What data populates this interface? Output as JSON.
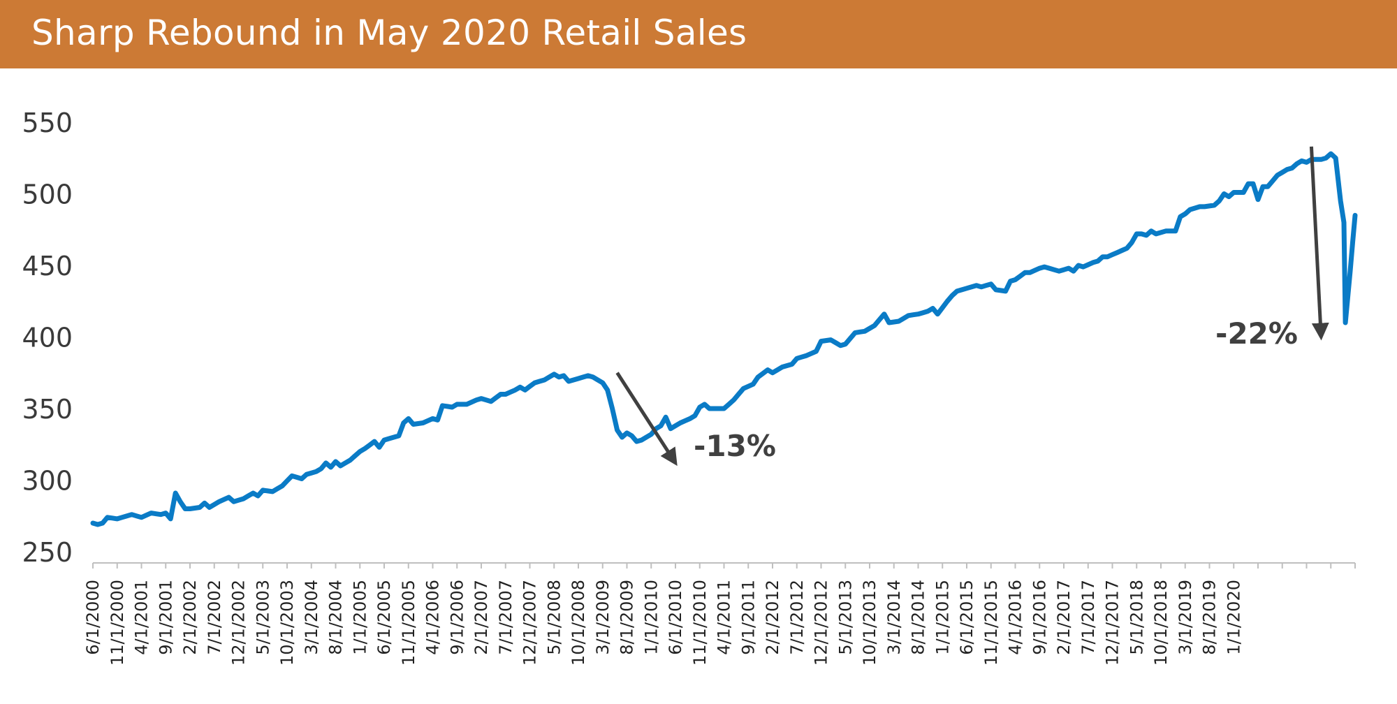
{
  "colors": {
    "header": "#cc7a35",
    "line": "#0a7bc6",
    "arrow": "#404040"
  },
  "header": {
    "title": "Sharp Rebound in May 2020 Retail Sales"
  },
  "chart_data": {
    "type": "line",
    "title": "Sharp Rebound in May 2020 Retail Sales",
    "xlabel": "",
    "ylabel": "",
    "ylim": [
      250,
      550
    ],
    "yticks": [
      250,
      300,
      350,
      400,
      450,
      500,
      550
    ],
    "x_start": "6/1/2000",
    "x_tick_labels": [
      "6/1/2000",
      "11/1/2000",
      "4/1/2001",
      "9/1/2001",
      "2/1/2002",
      "7/1/2002",
      "12/1/2002",
      "5/1/2003",
      "10/1/2003",
      "3/1/2004",
      "8/1/2004",
      "1/1/2005",
      "6/1/2005",
      "11/1/2005",
      "4/1/2006",
      "9/1/2006",
      "2/1/2007",
      "7/1/2007",
      "12/1/2007",
      "5/1/2008",
      "10/1/2008",
      "3/1/2009",
      "8/1/2009",
      "1/1/2010",
      "6/1/2010",
      "11/1/2010",
      "4/1/2011",
      "9/1/2011",
      "2/1/2012",
      "7/1/2012",
      "12/1/2012",
      "5/1/2013",
      "10/1/2013",
      "3/1/2014",
      "8/1/2014",
      "1/1/2015",
      "6/1/2015",
      "11/1/2015",
      "4/1/2016",
      "9/1/2016",
      "2/1/2017",
      "7/1/2017",
      "12/1/2017",
      "5/1/2018",
      "10/1/2018",
      "3/1/2019",
      "8/1/2019",
      "1/1/2020"
    ],
    "series": [
      {
        "name": "Retail Sales",
        "anchors": [
          [
            0,
            270
          ],
          [
            1,
            269
          ],
          [
            2,
            270
          ],
          [
            3,
            274
          ],
          [
            5,
            273
          ],
          [
            8,
            276
          ],
          [
            10,
            274
          ],
          [
            12,
            277
          ],
          [
            14,
            276
          ],
          [
            15,
            277
          ],
          [
            16,
            273
          ],
          [
            17,
            291
          ],
          [
            18,
            285
          ],
          [
            19,
            280
          ],
          [
            20,
            280
          ],
          [
            22,
            281
          ],
          [
            23,
            284
          ],
          [
            24,
            281
          ],
          [
            26,
            285
          ],
          [
            28,
            288
          ],
          [
            29,
            285
          ],
          [
            31,
            287
          ],
          [
            33,
            291
          ],
          [
            34,
            289
          ],
          [
            35,
            293
          ],
          [
            37,
            292
          ],
          [
            39,
            296
          ],
          [
            41,
            303
          ],
          [
            43,
            301
          ],
          [
            44,
            304
          ],
          [
            46,
            306
          ],
          [
            47,
            308
          ],
          [
            48,
            312
          ],
          [
            49,
            309
          ],
          [
            50,
            313
          ],
          [
            51,
            310
          ],
          [
            53,
            314
          ],
          [
            55,
            320
          ],
          [
            56,
            322
          ],
          [
            58,
            327
          ],
          [
            59,
            323
          ],
          [
            60,
            328
          ],
          [
            62,
            330
          ],
          [
            63,
            331
          ],
          [
            64,
            340
          ],
          [
            65,
            343
          ],
          [
            66,
            339
          ],
          [
            68,
            340
          ],
          [
            70,
            343
          ],
          [
            71,
            342
          ],
          [
            72,
            352
          ],
          [
            74,
            351
          ],
          [
            75,
            353
          ],
          [
            77,
            353
          ],
          [
            79,
            356
          ],
          [
            80,
            357
          ],
          [
            82,
            355
          ],
          [
            84,
            360
          ],
          [
            85,
            360
          ],
          [
            87,
            363
          ],
          [
            88,
            365
          ],
          [
            89,
            363
          ],
          [
            91,
            368
          ],
          [
            93,
            370
          ],
          [
            95,
            374
          ],
          [
            96,
            372
          ],
          [
            97,
            373
          ],
          [
            98,
            369
          ],
          [
            100,
            371
          ],
          [
            102,
            373
          ],
          [
            103,
            372
          ],
          [
            105,
            368
          ],
          [
            106,
            363
          ],
          [
            107,
            350
          ],
          [
            108,
            335
          ],
          [
            109,
            330
          ],
          [
            110,
            333
          ],
          [
            111,
            331
          ],
          [
            112,
            327
          ],
          [
            113,
            328
          ],
          [
            115,
            332
          ],
          [
            116,
            336
          ],
          [
            117,
            338
          ],
          [
            118,
            344
          ],
          [
            119,
            336
          ],
          [
            121,
            340
          ],
          [
            123,
            343
          ],
          [
            124,
            345
          ],
          [
            125,
            351
          ],
          [
            126,
            353
          ],
          [
            127,
            350
          ],
          [
            128,
            350
          ],
          [
            130,
            350
          ],
          [
            132,
            356
          ],
          [
            134,
            364
          ],
          [
            136,
            367
          ],
          [
            137,
            372
          ],
          [
            139,
            377
          ],
          [
            140,
            375
          ],
          [
            142,
            379
          ],
          [
            144,
            381
          ],
          [
            145,
            385
          ],
          [
            147,
            387
          ],
          [
            149,
            390
          ],
          [
            150,
            397
          ],
          [
            152,
            398
          ],
          [
            154,
            394
          ],
          [
            155,
            395
          ],
          [
            157,
            403
          ],
          [
            159,
            404
          ],
          [
            161,
            408
          ],
          [
            163,
            416
          ],
          [
            164,
            410
          ],
          [
            166,
            411
          ],
          [
            168,
            415
          ],
          [
            170,
            416
          ],
          [
            172,
            418
          ],
          [
            173,
            420
          ],
          [
            174,
            416
          ],
          [
            176,
            425
          ],
          [
            177,
            429
          ],
          [
            178,
            432
          ],
          [
            180,
            434
          ],
          [
            182,
            436
          ],
          [
            183,
            435
          ],
          [
            185,
            437
          ],
          [
            186,
            433
          ],
          [
            188,
            432
          ],
          [
            189,
            439
          ],
          [
            190,
            440
          ],
          [
            192,
            445
          ],
          [
            193,
            445
          ],
          [
            195,
            448
          ],
          [
            196,
            449
          ],
          [
            198,
            447
          ],
          [
            199,
            446
          ],
          [
            201,
            448
          ],
          [
            202,
            446
          ],
          [
            203,
            450
          ],
          [
            204,
            449
          ],
          [
            206,
            452
          ],
          [
            207,
            453
          ],
          [
            208,
            456
          ],
          [
            209,
            456
          ],
          [
            211,
            459
          ],
          [
            213,
            462
          ],
          [
            214,
            466
          ],
          [
            215,
            472
          ],
          [
            216,
            472
          ],
          [
            217,
            471
          ],
          [
            218,
            474
          ],
          [
            219,
            472
          ],
          [
            221,
            474
          ],
          [
            223,
            474
          ],
          [
            224,
            484
          ],
          [
            225,
            486
          ],
          [
            226,
            489
          ],
          [
            228,
            491
          ],
          [
            229,
            491
          ],
          [
            231,
            492
          ],
          [
            232,
            495
          ],
          [
            233,
            500
          ],
          [
            234,
            498
          ],
          [
            235,
            501
          ],
          [
            237,
            501
          ],
          [
            238,
            507
          ],
          [
            239,
            507
          ],
          [
            240,
            496
          ],
          [
            241,
            505
          ],
          [
            242,
            505
          ],
          [
            243,
            509
          ],
          [
            244,
            513
          ],
          [
            245,
            515
          ],
          [
            246,
            517
          ],
          [
            247,
            518
          ],
          [
            248,
            521
          ],
          [
            249,
            523
          ],
          [
            250,
            522
          ],
          [
            251,
            524
          ],
          [
            253,
            524
          ],
          [
            254,
            525
          ],
          [
            255,
            528
          ],
          [
            256,
            525
          ],
          [
            257,
            495
          ],
          [
            257.7,
            480
          ],
          [
            258,
            410
          ],
          [
            259,
            446
          ],
          [
            259.5,
            466
          ],
          [
            260,
            485
          ]
        ]
      }
    ],
    "annotations": [
      {
        "text": "-13%",
        "arrow_from": [
          108,
          375
        ],
        "arrow_to": [
          120,
          312
        ]
      },
      {
        "text": "-22%",
        "arrow_from": [
          251,
          533
        ],
        "arrow_to": [
          253,
          400
        ]
      }
    ]
  }
}
